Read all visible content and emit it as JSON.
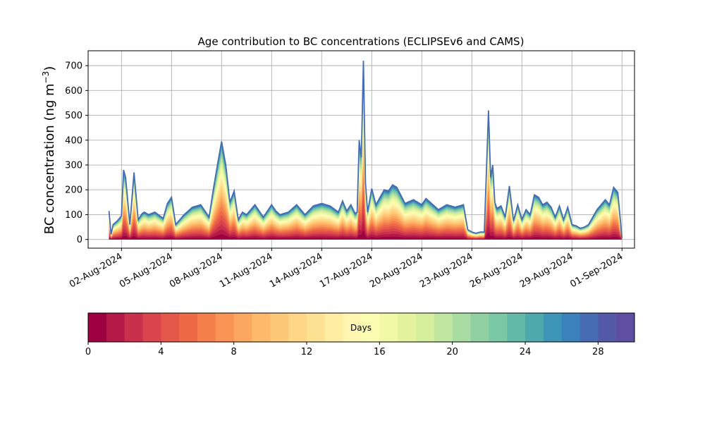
{
  "chart_data": {
    "type": "area",
    "title": "Age contribution to BC concentrations (ECLIPSEv6 and CAMS)",
    "ylabel": "BC concentration (ng m⁻³)",
    "ylabel_main": "BC concentration (ng m",
    "ylabel_sup": "−3",
    "ylabel_close": ")",
    "xlabel": "",
    "grid": true,
    "stacked": true,
    "ylim": [
      -35,
      760
    ],
    "xlim": [
      "2024-07-31T00:00",
      "2024-09-01T18:00"
    ],
    "x_ticks": [
      "2024-08-02",
      "2024-08-05",
      "2024-08-08",
      "2024-08-11",
      "2024-08-14",
      "2024-08-17",
      "2024-08-20",
      "2024-08-23",
      "2024-08-26",
      "2024-08-29",
      "2024-09-01"
    ],
    "x_tick_labels": [
      "02-Aug-2024",
      "05-Aug-2024",
      "08-Aug-2024",
      "11-Aug-2024",
      "14-Aug-2024",
      "17-Aug-2024",
      "20-Aug-2024",
      "23-Aug-2024",
      "26-Aug-2024",
      "29-Aug-2024",
      "01-Sep-2024"
    ],
    "y_ticks": [
      0,
      100,
      200,
      300,
      400,
      500,
      600,
      700
    ],
    "y_tick_labels": [
      "0",
      "100",
      "200",
      "300",
      "400",
      "500",
      "600",
      "700"
    ],
    "total": {
      "x": [
        "2024-08-01T06:00",
        "2024-08-01T09:00",
        "2024-08-01T12:00",
        "2024-08-01T18:00",
        "2024-08-02T00:00",
        "2024-08-02T03:00",
        "2024-08-02T06:00",
        "2024-08-02T12:00",
        "2024-08-02T18:00",
        "2024-08-03T00:00",
        "2024-08-03T06:00",
        "2024-08-03T09:00",
        "2024-08-03T15:00",
        "2024-08-04T00:00",
        "2024-08-04T12:00",
        "2024-08-04T18:00",
        "2024-08-05T00:00",
        "2024-08-05T06:00",
        "2024-08-05T12:00",
        "2024-08-05T18:00",
        "2024-08-06T06:00",
        "2024-08-06T18:00",
        "2024-08-07T06:00",
        "2024-08-07T12:00",
        "2024-08-07T18:00",
        "2024-08-08T00:00",
        "2024-08-08T06:00",
        "2024-08-08T12:00",
        "2024-08-08T18:00",
        "2024-08-09T00:00",
        "2024-08-09T06:00",
        "2024-08-09T12:00",
        "2024-08-10T00:00",
        "2024-08-10T12:00",
        "2024-08-11T00:00",
        "2024-08-11T06:00",
        "2024-08-11T12:00",
        "2024-08-12T00:00",
        "2024-08-12T12:00",
        "2024-08-13T00:00",
        "2024-08-13T12:00",
        "2024-08-14T00:00",
        "2024-08-14T12:00",
        "2024-08-15T00:00",
        "2024-08-15T06:00",
        "2024-08-15T12:00",
        "2024-08-15T18:00",
        "2024-08-16T00:00",
        "2024-08-16T03:00",
        "2024-08-16T06:00",
        "2024-08-16T09:00",
        "2024-08-16T12:00",
        "2024-08-16T15:00",
        "2024-08-16T18:00",
        "2024-08-17T00:00",
        "2024-08-17T06:00",
        "2024-08-17T12:00",
        "2024-08-17T18:00",
        "2024-08-18T00:00",
        "2024-08-18T06:00",
        "2024-08-18T12:00",
        "2024-08-19T00:00",
        "2024-08-19T12:00",
        "2024-08-20T00:00",
        "2024-08-20T06:00",
        "2024-08-20T12:00",
        "2024-08-21T00:00",
        "2024-08-21T12:00",
        "2024-08-22T00:00",
        "2024-08-22T12:00",
        "2024-08-22T18:00",
        "2024-08-23T00:00",
        "2024-08-23T06:00",
        "2024-08-23T12:00",
        "2024-08-23T18:00",
        "2024-08-24T00:00",
        "2024-08-24T03:00",
        "2024-08-24T06:00",
        "2024-08-24T09:00",
        "2024-08-24T12:00",
        "2024-08-24T18:00",
        "2024-08-25T00:00",
        "2024-08-25T06:00",
        "2024-08-25T12:00",
        "2024-08-25T18:00",
        "2024-08-26T00:00",
        "2024-08-26T06:00",
        "2024-08-26T12:00",
        "2024-08-26T18:00",
        "2024-08-27T00:00",
        "2024-08-27T06:00",
        "2024-08-27T12:00",
        "2024-08-27T18:00",
        "2024-08-28T00:00",
        "2024-08-28T06:00",
        "2024-08-28T12:00",
        "2024-08-28T18:00",
        "2024-08-29T00:00",
        "2024-08-29T06:00",
        "2024-08-29T12:00",
        "2024-08-29T18:00",
        "2024-08-30T00:00",
        "2024-08-30T12:00",
        "2024-08-31T00:00",
        "2024-08-31T06:00",
        "2024-08-31T12:00",
        "2024-08-31T18:00",
        "2024-09-01T00:00"
      ],
      "y": [
        115,
        20,
        60,
        75,
        95,
        280,
        250,
        60,
        270,
        80,
        105,
        110,
        100,
        110,
        85,
        145,
        170,
        60,
        80,
        100,
        130,
        140,
        90,
        200,
        300,
        395,
        300,
        150,
        195,
        80,
        110,
        100,
        140,
        90,
        140,
        115,
        100,
        110,
        140,
        100,
        135,
        145,
        135,
        110,
        155,
        115,
        140,
        105,
        110,
        400,
        330,
        720,
        230,
        110,
        205,
        140,
        170,
        200,
        195,
        220,
        210,
        145,
        160,
        140,
        165,
        150,
        120,
        140,
        130,
        140,
        40,
        30,
        25,
        30,
        30,
        520,
        250,
        300,
        150,
        125,
        135,
        90,
        215,
        75,
        140,
        80,
        120,
        100,
        180,
        170,
        140,
        150,
        130,
        90,
        135,
        80,
        130,
        60,
        55,
        45,
        50,
        60,
        120,
        160,
        140,
        210,
        190,
        5
      ]
    },
    "young_share_note": "",
    "colorbar": {
      "label": "Days",
      "ticks": [
        0,
        4,
        8,
        12,
        16,
        20,
        24,
        28
      ],
      "tick_labels": [
        "0",
        "4",
        "8",
        "12",
        "16",
        "20",
        "24",
        "28"
      ],
      "range": [
        0,
        30
      ],
      "colormap": "Spectral",
      "colors": [
        "#9e0142",
        "#b41947",
        "#c9304c",
        "#d9444d",
        "#e4574b",
        "#ee6a46",
        "#f57f4b",
        "#f99455",
        "#fca75f",
        "#fdba6a",
        "#fdc977",
        "#fed685",
        "#fee293",
        "#feeda2",
        "#fff7b1",
        "#f9fcb1",
        "#f1f9a7",
        "#e4f49d",
        "#d4ee9c",
        "#c1e69f",
        "#a9dca3",
        "#90d1a4",
        "#7ac8a4",
        "#63b9a8",
        "#4ea9ad",
        "#3d95b8",
        "#3b81bb",
        "#466db3",
        "#5459a8",
        "#5e4fa2"
      ]
    }
  }
}
